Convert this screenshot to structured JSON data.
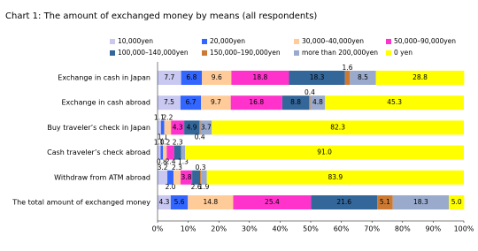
{
  "chart_data": {
    "type": "stacked-bar-horizontal",
    "title": "Chart 1: The amount of exchanged money by means (all respondents)",
    "categories": [
      "Exchange in cash in Japan",
      "Exchange in cash abroad",
      "Buy traveler’s check in Japan",
      "Cash traveler’s check abroad",
      "Withdraw from ATM abroad",
      "The total amount of exchanged money"
    ],
    "series": [
      {
        "name": "10,000yen",
        "color": "#c8c8f0",
        "values": [
          7.7,
          7.5,
          1.1,
          1.0,
          3.2,
          4.3
        ],
        "value_labels": [
          "7.7",
          "7.5",
          "1.1",
          "1.0",
          "3.2",
          "4.3"
        ]
      },
      {
        "name": "20,000yen",
        "color": "#3366ff",
        "values": [
          6.8,
          6.7,
          1.1,
          0.8,
          2.0,
          5.6
        ],
        "value_labels": [
          "6.8",
          "6.7",
          "1.1",
          "0.8",
          "2.0",
          "5.6"
        ]
      },
      {
        "name": "30,000–40,000yen",
        "color": "#ffcc99",
        "values": [
          9.6,
          9.7,
          2.2,
          1.2,
          2.3,
          14.8
        ],
        "value_labels": [
          "9.6",
          "9.7",
          "2.2",
          "1.2",
          "2.3",
          "14.8"
        ]
      },
      {
        "name": "50,000–90,000yen",
        "color": "#ff33cc",
        "values": [
          18.8,
          16.8,
          4.3,
          2.4,
          3.8,
          25.4
        ],
        "value_labels": [
          "18.8",
          "16.8",
          "4.3",
          "2.4",
          "3.8",
          "25.4"
        ]
      },
      {
        "name": "100,000–140,000yen",
        "color": "#336699",
        "values": [
          18.3,
          8.8,
          4.9,
          2.3,
          2.6,
          21.6
        ],
        "value_labels": [
          "18.3",
          "8.8",
          "4.9",
          "2.3",
          "2.6",
          "21.6"
        ]
      },
      {
        "name": "150,000–190,000yen",
        "color": "#cc7a33",
        "values": [
          1.6,
          0.4,
          0.4,
          0,
          0.3,
          5.1
        ],
        "value_labels": [
          "1.6",
          "0.4",
          "0.4",
          null,
          "0.3",
          "5.1"
        ]
      },
      {
        "name": "more than 200,000yen",
        "color": "#99aacc",
        "values": [
          8.5,
          4.8,
          3.7,
          1.3,
          1.9,
          18.3
        ],
        "value_labels": [
          "8.5",
          "4.8",
          "3.7",
          "1.3",
          "1.9",
          "18.3"
        ]
      },
      {
        "name": "0 yen",
        "color": "#ffff00",
        "values": [
          28.8,
          45.3,
          82.3,
          91.0,
          83.9,
          5.0
        ],
        "value_labels": [
          "28.8",
          "45.3",
          "82.3",
          "91.0",
          "83.9",
          "5.0"
        ]
      }
    ],
    "xlim": [
      0,
      100
    ],
    "xticks": [
      {
        "value": 0,
        "label": "0%"
      },
      {
        "value": 10,
        "label": "10%"
      },
      {
        "value": 20,
        "label": "20%"
      },
      {
        "value": 30,
        "label": "30%"
      },
      {
        "value": 40,
        "label": "40%"
      },
      {
        "value": 50,
        "label": "50%"
      },
      {
        "value": 60,
        "label": "60%"
      },
      {
        "value": 70,
        "label": "70%"
      },
      {
        "value": 80,
        "label": "80%"
      },
      {
        "value": 90,
        "label": "90%"
      },
      {
        "value": 100,
        "label": "100%"
      }
    ]
  }
}
